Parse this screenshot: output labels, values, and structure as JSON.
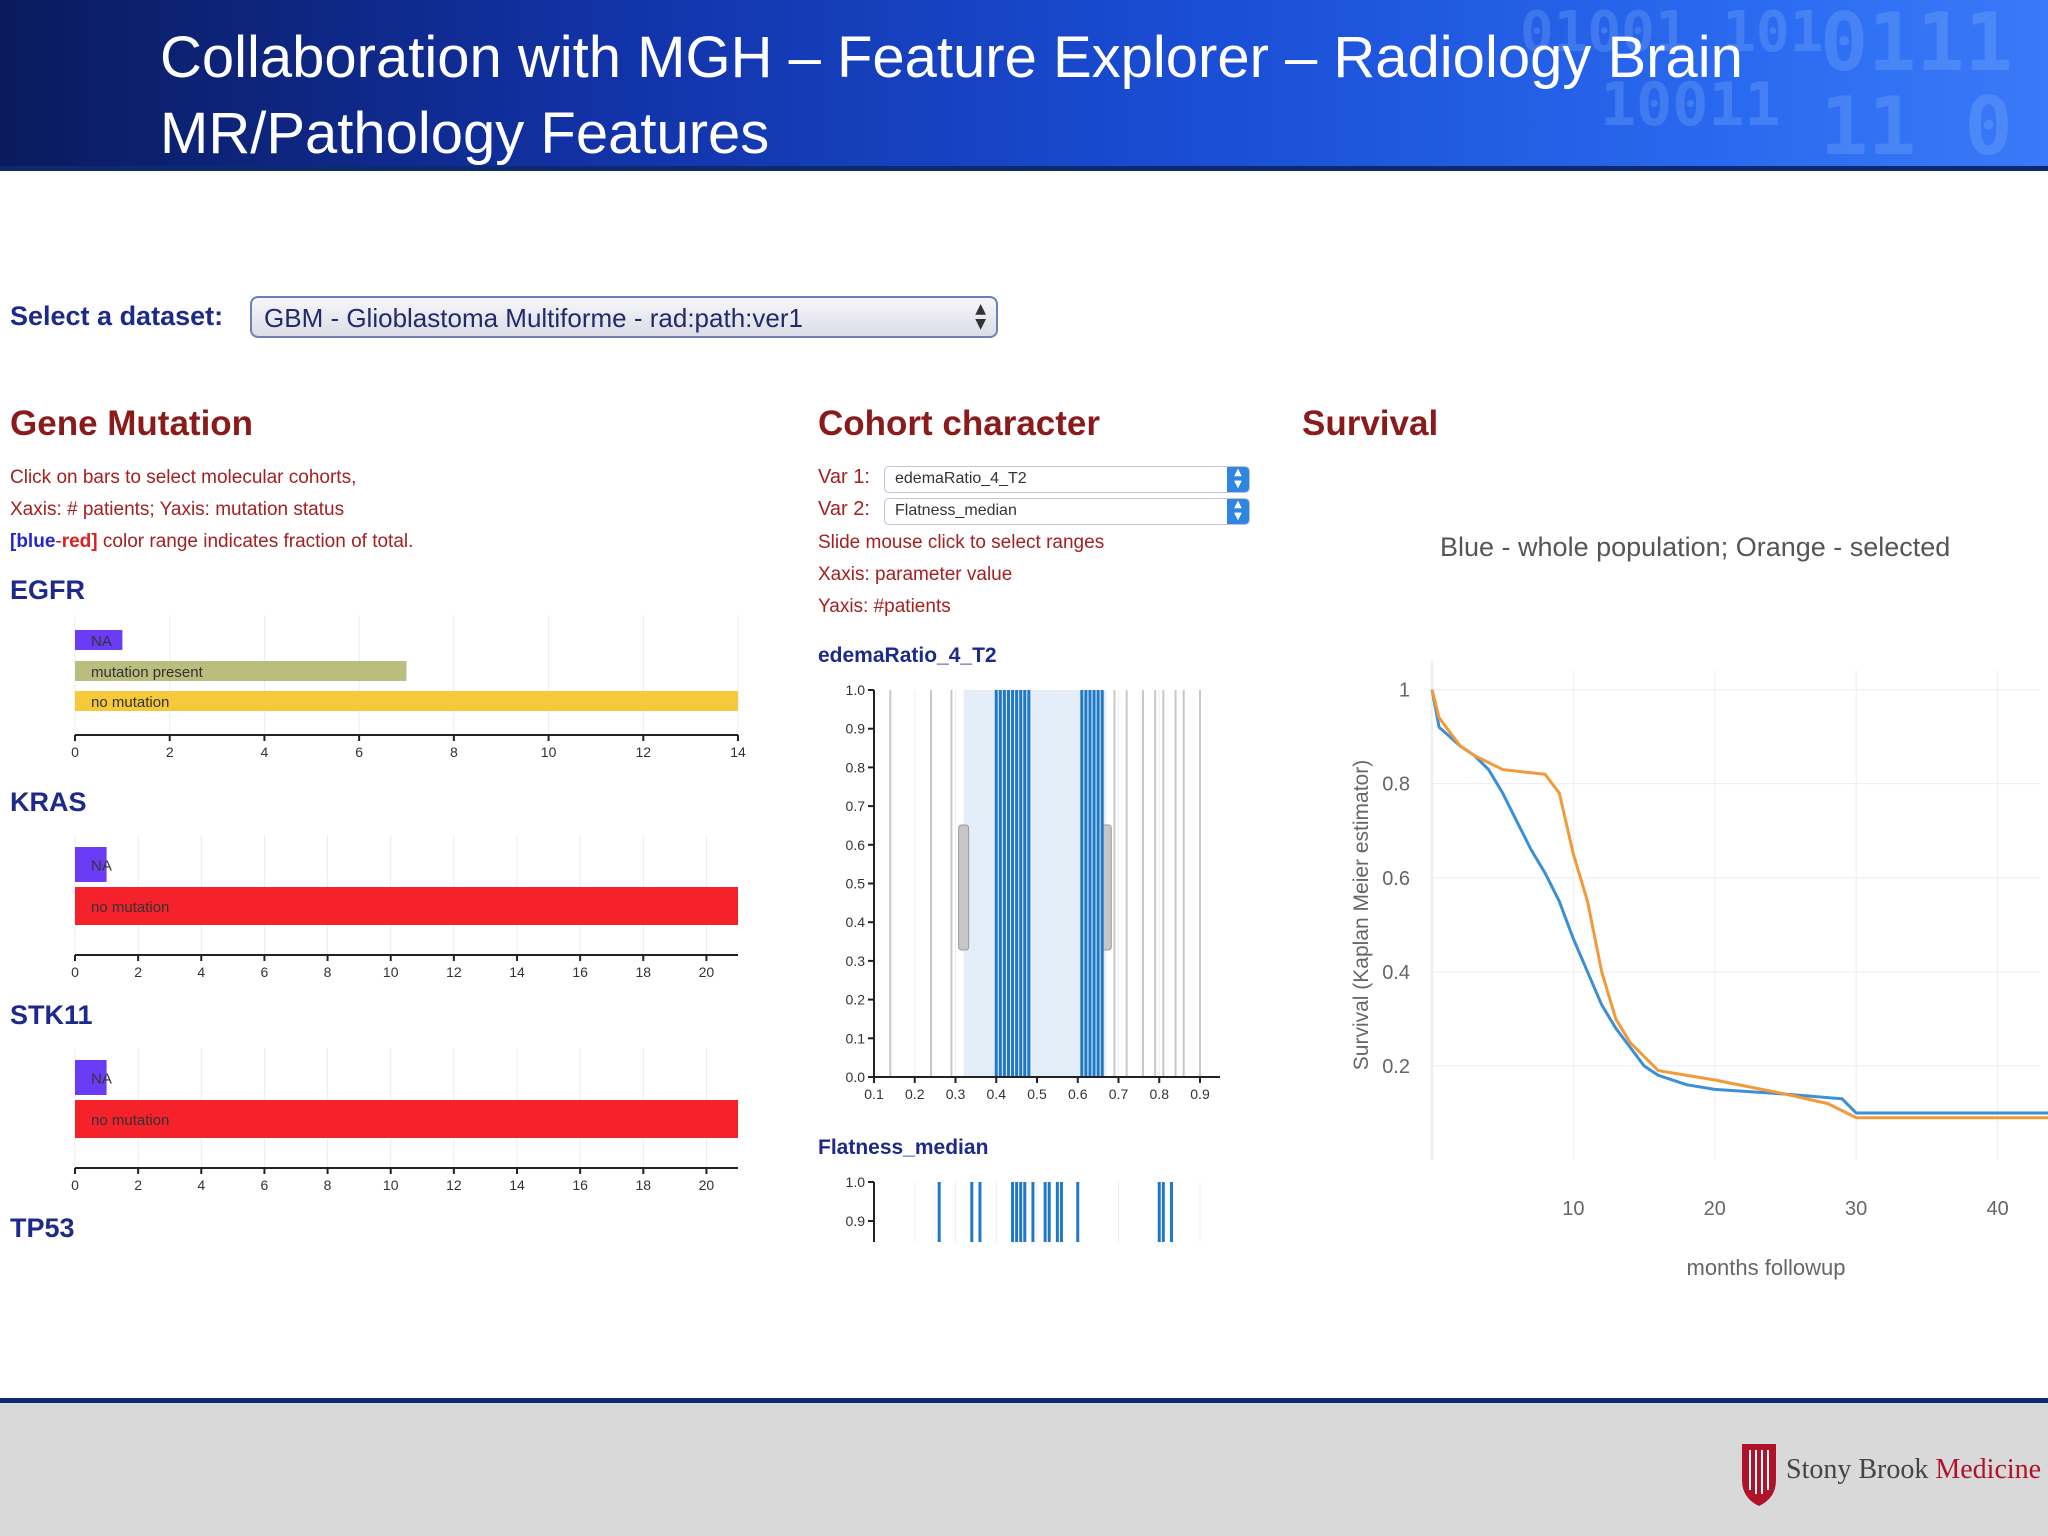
{
  "header": {
    "title": "Collaboration with MGH – Feature Explorer – Radiology Brain MR/Pathology Features"
  },
  "dataset": {
    "label": "Select a dataset:",
    "value": "GBM - Glioblastoma Multiforme - rad:path:ver1"
  },
  "gene_mutation": {
    "title": "Gene Mutation",
    "desc1": "Click on bars to select molecular cohorts,",
    "desc2": "Xaxis: # patients; Yaxis: mutation status",
    "desc3_blue": "[blue",
    "desc3_dash": "-",
    "desc3_red": "red]",
    "desc3_rest": " color range indicates fraction of total.",
    "genes": [
      {
        "name": "EGFR",
        "axis_max": 14,
        "ticks": [
          0,
          2,
          4,
          6,
          8,
          10,
          12,
          14
        ],
        "bars": [
          {
            "label": "NA",
            "value": 1,
            "color": "#6b3cf5"
          },
          {
            "label": "mutation present",
            "value": 7,
            "color": "#b9bd7e"
          },
          {
            "label": "no mutation",
            "value": 14,
            "color": "#f5c93a"
          }
        ]
      },
      {
        "name": "KRAS",
        "axis_max": 21,
        "ticks": [
          0,
          2,
          4,
          6,
          8,
          10,
          12,
          14,
          16,
          18,
          20
        ],
        "bars": [
          {
            "label": "NA",
            "value": 1,
            "color": "#6b3cf5"
          },
          {
            "label": "no mutation",
            "value": 21,
            "color": "#f5222b"
          }
        ]
      },
      {
        "name": "STK11",
        "axis_max": 21,
        "ticks": [
          0,
          2,
          4,
          6,
          8,
          10,
          12,
          14,
          16,
          18,
          20
        ],
        "bars": [
          {
            "label": "NA",
            "value": 1,
            "color": "#6b3cf5"
          },
          {
            "label": "no mutation",
            "value": 21,
            "color": "#f5222b"
          }
        ]
      },
      {
        "name": "TP53"
      }
    ]
  },
  "cohort": {
    "title": "Cohort character",
    "var1_label": "Var 1:",
    "var1_value": "edemaRatio_4_T2",
    "var2_label": "Var 2:",
    "var2_value": "Flatness_median",
    "hint1": "Slide mouse click to select ranges",
    "hint2": "Xaxis: parameter value",
    "hint3": "Yaxis: #patients",
    "plot1_title": "edemaRatio_4_T2",
    "plot2_title": "Flatness_median",
    "y_ticks": [
      "1.0",
      "0.9",
      "0.8",
      "0.7",
      "0.6",
      "0.5",
      "0.4",
      "0.3",
      "0.2",
      "0.1",
      "0.0"
    ],
    "x_ticks": [
      "0.1",
      "0.2",
      "0.3",
      "0.4",
      "0.5",
      "0.6",
      "0.7",
      "0.8",
      "0.9"
    ],
    "plot2_y_ticks": [
      "1.0",
      "0.9"
    ],
    "brush_range": [
      0.32,
      0.67
    ],
    "plot1_blue_lines": [
      0.4,
      0.41,
      0.42,
      0.43,
      0.44,
      0.45,
      0.46,
      0.47,
      0.48,
      0.61,
      0.62,
      0.63,
      0.64,
      0.65,
      0.66
    ],
    "plot1_gray_lines": [
      0.14,
      0.24,
      0.29,
      0.69,
      0.72,
      0.76,
      0.79,
      0.81,
      0.84,
      0.86,
      0.9
    ],
    "plot2_blue_lines": [
      0.26,
      0.34,
      0.36,
      0.44,
      0.45,
      0.46,
      0.47,
      0.49,
      0.52,
      0.53,
      0.55,
      0.56,
      0.6,
      0.8,
      0.81,
      0.83
    ]
  },
  "survival": {
    "title": "Survival",
    "legend": "Blue - whole population; Orange - selected",
    "ylabel": "Survival (Kaplan Meier estimator)",
    "xlabel": "months followup",
    "x_ticks": [
      "10",
      "20",
      "30",
      "40"
    ],
    "y_ticks": [
      "1",
      "0.8",
      "0.6",
      "0.4",
      "0.2"
    ],
    "colors": {
      "whole": "#3b8fd6",
      "selected": "#f29a3a"
    },
    "whole_population": [
      [
        0,
        1
      ],
      [
        0.5,
        0.92
      ],
      [
        2,
        0.88
      ],
      [
        3,
        0.86
      ],
      [
        4,
        0.83
      ],
      [
        5,
        0.78
      ],
      [
        6,
        0.72
      ],
      [
        7,
        0.66
      ],
      [
        8,
        0.61
      ],
      [
        9,
        0.55
      ],
      [
        10,
        0.47
      ],
      [
        11,
        0.4
      ],
      [
        12,
        0.33
      ],
      [
        13,
        0.28
      ],
      [
        14,
        0.24
      ],
      [
        15,
        0.2
      ],
      [
        16,
        0.18
      ],
      [
        18,
        0.16
      ],
      [
        20,
        0.15
      ],
      [
        25,
        0.14
      ],
      [
        29,
        0.13
      ],
      [
        30,
        0.1
      ],
      [
        44,
        0.1
      ]
    ],
    "selected": [
      [
        0,
        1
      ],
      [
        0.5,
        0.94
      ],
      [
        2,
        0.88
      ],
      [
        3,
        0.86
      ],
      [
        5,
        0.83
      ],
      [
        8,
        0.82
      ],
      [
        9,
        0.78
      ],
      [
        10,
        0.65
      ],
      [
        11,
        0.55
      ],
      [
        12,
        0.4
      ],
      [
        13,
        0.3
      ],
      [
        14,
        0.25
      ],
      [
        15,
        0.22
      ],
      [
        16,
        0.19
      ],
      [
        20,
        0.17
      ],
      [
        25,
        0.14
      ],
      [
        28,
        0.12
      ],
      [
        30,
        0.09
      ],
      [
        44,
        0.09
      ]
    ]
  },
  "footer": {
    "logo_word1": "Stony Brook",
    "logo_word2": "Medicine"
  }
}
